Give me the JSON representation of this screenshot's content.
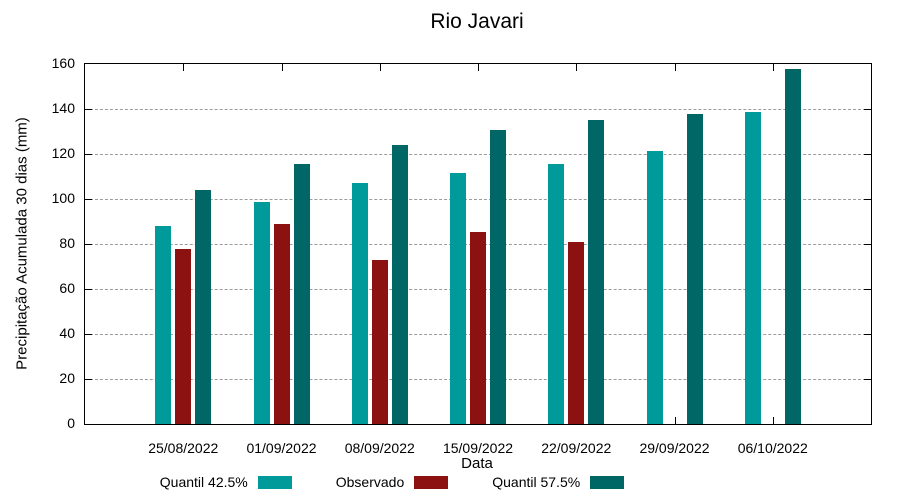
{
  "title": "Rio Javari",
  "chart_data": {
    "type": "bar",
    "title": "Rio Javari",
    "xlabel": "Data",
    "ylabel": "Precipitação Acumulada 30 dias (mm)",
    "categories": [
      "25/08/2022",
      "01/09/2022",
      "08/09/2022",
      "15/09/2022",
      "22/09/2022",
      "29/09/2022",
      "06/10/2022"
    ],
    "series": [
      {
        "name": "Quantil 42.5%",
        "color": "#009A9A",
        "values": [
          88,
          98.5,
          107,
          111.5,
          115.5,
          121.5,
          138.5
        ]
      },
      {
        "name": "Observado",
        "color": "#8C1111",
        "values": [
          78,
          89,
          73,
          85.5,
          81,
          null,
          null
        ]
      },
      {
        "name": "Quantil 57.5%",
        "color": "#006666",
        "values": [
          104,
          115.5,
          124,
          130.5,
          135,
          138,
          158
        ]
      }
    ],
    "ylim": [
      0,
      160
    ],
    "ytick_step": 20,
    "grid": "horizontal dashed gridlines at each y tick",
    "legend_position": "bottom horizontal, swatch right of label"
  },
  "colors": {
    "background": "#FFFFFF",
    "axis": "#000000",
    "grid": "#9C9C9C",
    "quantil_42_5": "#009A9A",
    "observado": "#8C1111",
    "quantil_57_5": "#006666"
  }
}
